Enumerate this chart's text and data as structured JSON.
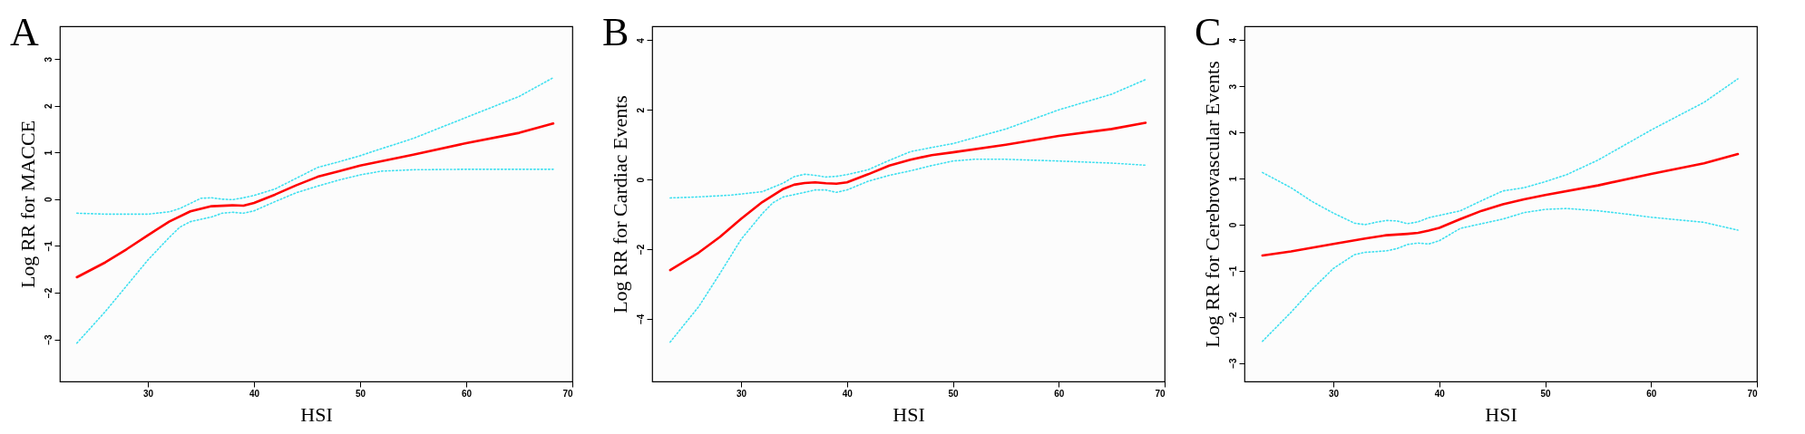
{
  "chart_data": [
    {
      "type": "line",
      "title": "A",
      "xlabel": "HSI",
      "ylabel": "Log RR for MACCE",
      "xlim": [
        21.7,
        70
      ],
      "xticks": [
        30,
        40,
        50,
        60,
        70
      ],
      "ylim": [
        -3.9,
        3.7
      ],
      "yticks": [
        -3,
        -2,
        -1,
        0,
        1,
        2,
        3
      ],
      "grid": false,
      "series": [
        {
          "color": "#ff0000",
          "line_style": "solid",
          "x": [
            23.3,
            26,
            28,
            30,
            32,
            34,
            36,
            38,
            39,
            40,
            42,
            44,
            46,
            48,
            50,
            55,
            60,
            65,
            68.2
          ],
          "values": [
            -1.67,
            -1.35,
            -1.07,
            -0.77,
            -0.48,
            -0.26,
            -0.15,
            -0.13,
            -0.14,
            -0.08,
            0.1,
            0.3,
            0.48,
            0.6,
            0.72,
            0.95,
            1.2,
            1.42,
            1.62
          ]
        },
        {
          "color": "#40e0f0",
          "line_style": "dotted",
          "x": [
            23.3,
            26,
            30,
            32,
            33,
            35,
            36,
            37,
            38,
            39,
            40,
            42,
            44,
            46,
            48,
            50,
            52,
            55,
            60,
            65,
            68.2
          ],
          "values": [
            -0.3,
            -0.32,
            -0.32,
            -0.27,
            -0.2,
            0.02,
            0.03,
            0,
            -0.01,
            0.03,
            0.08,
            0.22,
            0.45,
            0.68,
            0.8,
            0.93,
            1.08,
            1.3,
            1.75,
            2.2,
            2.6
          ]
        },
        {
          "color": "#40e0f0",
          "line_style": "dotted",
          "x": [
            23.3,
            26,
            28,
            30,
            32,
            33,
            34,
            36,
            37,
            38,
            39,
            40,
            42,
            44,
            46,
            48,
            50,
            52,
            55,
            60,
            68.2
          ],
          "values": [
            -3.08,
            -2.4,
            -1.85,
            -1.3,
            -0.82,
            -0.6,
            -0.48,
            -0.38,
            -0.3,
            -0.28,
            -0.3,
            -0.25,
            -0.05,
            0.14,
            0.28,
            0.41,
            0.52,
            0.6,
            0.63,
            0.64,
            0.64
          ]
        }
      ]
    },
    {
      "type": "line",
      "title": "B",
      "xlabel": "HSI",
      "ylabel": "Log RR for Cardiac Events",
      "xlim": [
        21.6,
        70
      ],
      "xticks": [
        30,
        40,
        50,
        60,
        70
      ],
      "ylim": [
        -5.8,
        4.4
      ],
      "yticks": [
        -4,
        -2,
        0,
        2,
        4
      ],
      "grid": false,
      "series": [
        {
          "color": "#ff0000",
          "line_style": "solid",
          "x": [
            23.3,
            26,
            28,
            30,
            32,
            34,
            35,
            36,
            37,
            38,
            39,
            40,
            42,
            44,
            46,
            48,
            50,
            55,
            60,
            65,
            68.2
          ],
          "values": [
            -2.6,
            -2.1,
            -1.65,
            -1.13,
            -0.65,
            -0.27,
            -0.15,
            -0.1,
            -0.08,
            -0.11,
            -0.12,
            -0.08,
            0.15,
            0.4,
            0.57,
            0.7,
            0.78,
            1.0,
            1.25,
            1.45,
            1.63
          ]
        },
        {
          "color": "#40e0f0",
          "line_style": "dotted",
          "x": [
            23.3,
            26,
            29,
            32,
            34,
            35,
            36,
            37,
            38,
            39,
            40,
            42,
            44,
            46,
            48,
            50,
            55,
            60,
            65,
            68.2
          ],
          "values": [
            -0.53,
            -0.5,
            -0.45,
            -0.35,
            -0.1,
            0.08,
            0.15,
            0.12,
            0.07,
            0.09,
            0.14,
            0.28,
            0.55,
            0.8,
            0.92,
            1.03,
            1.45,
            2.0,
            2.45,
            2.87
          ]
        },
        {
          "color": "#40e0f0",
          "line_style": "dotted",
          "x": [
            23.3,
            26,
            28,
            30,
            32,
            33,
            34,
            36,
            37,
            38,
            39,
            40,
            42,
            44,
            46,
            48,
            50,
            52,
            55,
            60,
            65,
            68.2
          ],
          "values": [
            -4.67,
            -3.65,
            -2.7,
            -1.72,
            -0.98,
            -0.67,
            -0.5,
            -0.37,
            -0.3,
            -0.3,
            -0.37,
            -0.3,
            -0.05,
            0.12,
            0.25,
            0.4,
            0.53,
            0.58,
            0.58,
            0.53,
            0.47,
            0.41
          ]
        }
      ]
    },
    {
      "type": "line",
      "title": "C",
      "xlabel": "HSI",
      "ylabel": "Log RR for Cerebrovascular Events",
      "xlim": [
        21.6,
        70
      ],
      "xticks": [
        30,
        40,
        50,
        60,
        70
      ],
      "ylim": [
        -3.4,
        4.3
      ],
      "yticks": [
        -3,
        -2,
        -1,
        0,
        1,
        2,
        3,
        4
      ],
      "grid": false,
      "series": [
        {
          "color": "#ff0000",
          "line_style": "solid",
          "x": [
            23.3,
            26,
            30,
            33,
            35,
            37,
            38,
            39,
            40,
            42,
            44,
            46,
            48,
            50,
            55,
            60,
            65,
            68.2
          ],
          "values": [
            -0.67,
            -0.58,
            -0.42,
            -0.3,
            -0.23,
            -0.2,
            -0.18,
            -0.13,
            -0.07,
            0.12,
            0.3,
            0.44,
            0.55,
            0.64,
            0.85,
            1.1,
            1.33,
            1.53
          ]
        },
        {
          "color": "#40e0f0",
          "line_style": "dotted",
          "x": [
            23.3,
            26,
            28,
            30,
            32,
            33,
            34,
            35,
            36,
            37,
            38,
            39,
            40,
            42,
            44,
            46,
            48,
            50,
            52,
            55,
            60,
            65,
            68.2
          ],
          "values": [
            1.13,
            0.8,
            0.5,
            0.25,
            0.03,
            0,
            0.05,
            0.09,
            0.08,
            0.02,
            0.06,
            0.15,
            0.2,
            0.3,
            0.52,
            0.73,
            0.8,
            0.93,
            1.08,
            1.4,
            2.05,
            2.65,
            3.16
          ]
        },
        {
          "color": "#40e0f0",
          "line_style": "dotted",
          "x": [
            23.3,
            26,
            28,
            30,
            32,
            33,
            35,
            36,
            37,
            38,
            39,
            40,
            42,
            44,
            46,
            48,
            50,
            52,
            55,
            58,
            60,
            65,
            68.2
          ],
          "values": [
            -2.53,
            -1.9,
            -1.4,
            -0.95,
            -0.65,
            -0.6,
            -0.57,
            -0.52,
            -0.43,
            -0.4,
            -0.42,
            -0.35,
            -0.08,
            0.02,
            0.12,
            0.26,
            0.33,
            0.35,
            0.3,
            0.22,
            0.16,
            0.05,
            -0.12
          ]
        }
      ]
    }
  ]
}
